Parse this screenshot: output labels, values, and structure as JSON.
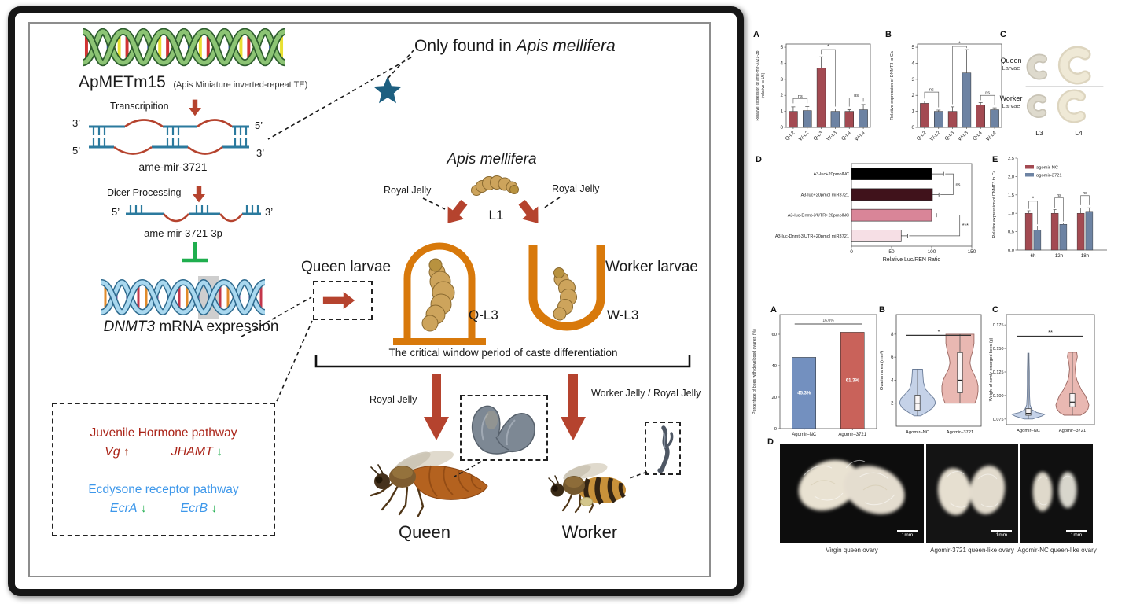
{
  "colors": {
    "queen_bar": "#a34a52",
    "worker_bar": "#6d83a3",
    "arrow_red": "#b5432e",
    "inhibit_green": "#1fae4e",
    "strand_teal": "#2b7a9e",
    "cell_orange": "#d8790b",
    "jh_red": "#aa2317",
    "ecdysone_blue": "#3d97ea",
    "star_blue": "#1d5f80",
    "fig2_blue": "#7390bf",
    "fig2_red": "#c9625a"
  },
  "main": {
    "te_name": "ApMETm15",
    "te_sub": "(Apis Miniature inverted-repeat TE)",
    "only_found_prefix": "Only found in ",
    "only_found_species": "Apis mellifera",
    "transcription_label": "Transcripition",
    "pre_mirna_name": "ame-mir-3721",
    "dicer_label": "Dicer Processing",
    "mature_mirna_name": "ame-mir-3721-3p",
    "mrna_gene": "DNMT3",
    "mrna_rest": " mRNA expression",
    "prime_top_left": "3’",
    "prime_top_right": "5’",
    "prime_bottom_left": "5’",
    "prime_bottom_right": "3’",
    "prime_mat_left": "5’",
    "prime_mat_right": "3’",
    "species_title": "Apis mellifera",
    "l1_label": "L1",
    "royal_jelly_left": "Royal Jelly",
    "royal_jelly_right": "Royal Jelly",
    "queen_larvae": "Queen larvae",
    "worker_larvae": "Worker larvae",
    "q_l3": "Q-L3",
    "w_l3": "W-L3",
    "critical_window": "The critical window period of caste differentiation",
    "royal_jelly_bottom": "Royal Jelly",
    "worker_jelly_bottom": "Worker Jelly / Royal Jelly",
    "queen_label": "Queen",
    "worker_label": "Worker",
    "pathway": {
      "jh_title": "Juvenile Hormone pathway",
      "vg": "Vg",
      "vg_dir": "↑",
      "jhamt": "JHAMT",
      "jhamt_dir": "↓",
      "ecd_title": "Ecdysone receptor pathway",
      "ecra": "EcrA",
      "ecra_dir": "↓",
      "ecrb": "EcrB",
      "ecrb_dir": "↓"
    }
  },
  "figure1": {
    "labels": {
      "a": "A",
      "b": "B",
      "c": "C",
      "d": "D",
      "e": "E"
    },
    "panelC": {
      "row1a": "Queen",
      "row1b": "Larvae",
      "row2a": "Worker",
      "row2b": "Larvae",
      "col1": "L3",
      "col2": "L4"
    }
  },
  "figure2": {
    "labels": {
      "a": "A",
      "b": "B",
      "c": "C",
      "d": "D"
    },
    "panelD": {
      "captions": [
        "Virgin queen ovary",
        "Agomir-3721 queen-like ovary",
        "Agomir-NC queen-like ovary"
      ],
      "scale": "1mm"
    }
  },
  "chart_data": {
    "fig1A": {
      "type": "bar",
      "ylabel": [
        "Relative expression of ame-mir-3721-3p",
        "(relative to U6)"
      ],
      "categories": [
        "Q-L2",
        "W-L2",
        "Q-L3",
        "W-L3",
        "Q-L4",
        "W-L4"
      ],
      "values": [
        1.0,
        1.05,
        3.7,
        1.0,
        1.0,
        1.1
      ],
      "errors": [
        0.28,
        0.25,
        0.7,
        0.15,
        0.1,
        0.33
      ],
      "colors": [
        "#a34a52",
        "#6d83a3",
        "#a34a52",
        "#6d83a3",
        "#a34a52",
        "#6d83a3"
      ],
      "ylim": [
        0,
        5.2
      ],
      "yticks": [
        0,
        1,
        2,
        3,
        4,
        5
      ],
      "sig": [
        {
          "a": 0,
          "b": 1,
          "y": 1.8,
          "ya": 1.5,
          "yb": 1.5,
          "t": "ns"
        },
        {
          "a": 2,
          "b": 3,
          "y": 4.85,
          "ya": 4.55,
          "yb": 1.3,
          "t": "*"
        },
        {
          "a": 4,
          "b": 5,
          "y": 1.85,
          "ya": 1.3,
          "yb": 1.6,
          "t": "ns"
        }
      ]
    },
    "fig1B": {
      "type": "bar",
      "ylabel": [
        "Relative expression of DNMT3 to Ca"
      ],
      "categories": [
        "Q-L2",
        "W-L2",
        "Q-L3",
        "W-L3",
        "Q-L4",
        "W-L4"
      ],
      "values": [
        1.5,
        1.0,
        1.0,
        3.4,
        1.4,
        1.1
      ],
      "errors": [
        0.15,
        0.08,
        0.28,
        1.45,
        0.15,
        0.12
      ],
      "colors": [
        "#a34a52",
        "#6d83a3",
        "#a34a52",
        "#6d83a3",
        "#a34a52",
        "#6d83a3"
      ],
      "ylim": [
        0,
        5.2
      ],
      "yticks": [
        0,
        1,
        2,
        3,
        4,
        5
      ],
      "sig": [
        {
          "a": 0,
          "b": 1,
          "y": 2.2,
          "ya": 1.8,
          "yb": 1.25,
          "t": "ns"
        },
        {
          "a": 2,
          "b": 3,
          "y": 5.05,
          "ya": 1.45,
          "yb": 4.95,
          "t": "*"
        },
        {
          "a": 4,
          "b": 5,
          "y": 2.0,
          "ya": 1.7,
          "yb": 1.4,
          "t": "ns"
        }
      ]
    },
    "fig1D": {
      "type": "hbar",
      "xlabel": "Relative Luc/REN Ratio",
      "categories": [
        "A3-luc+20pmolNC",
        "A3-luc+20pmol miR3721",
        "A3-luc-Dnmt-3'UTR+20pmolNC",
        "A3-luc-Dnmt-3'UTR+20pmol miR3721"
      ],
      "values": [
        100,
        101,
        100,
        62
      ],
      "errors": [
        15,
        8,
        6,
        8
      ],
      "colors": [
        "#000000",
        "#40121b",
        "#d98598",
        "#f6dfe5"
      ],
      "xlim": [
        0,
        150
      ],
      "xticks": [
        0,
        50,
        100,
        150
      ],
      "sig": [
        {
          "a": 0,
          "b": 1,
          "x": 127,
          "t": "ns"
        },
        {
          "a": 2,
          "b": 3,
          "x": 135,
          "t": "***"
        }
      ]
    },
    "fig1E": {
      "type": "groupbar",
      "ylabel": "Relative expression of DNMT3 to Ca",
      "categories": [
        "6h",
        "12h",
        "18h"
      ],
      "series": [
        {
          "name": "agomir-NC",
          "color": "#a34a52",
          "values": [
            1.0,
            1.0,
            1.0
          ],
          "errors": [
            0.07,
            0.1,
            0.14
          ]
        },
        {
          "name": "agomir-3721",
          "color": "#6d83a3",
          "values": [
            0.55,
            0.7,
            1.05
          ],
          "errors": [
            0.1,
            0.04,
            0.1
          ]
        }
      ],
      "ylim": [
        0,
        2.5
      ],
      "yticks": [
        {
          "v": 0,
          "l": "0,0"
        },
        {
          "v": 0.5,
          "l": "0,5"
        },
        {
          "v": 1.0,
          "l": "1,0"
        },
        {
          "v": 1.5,
          "l": "1,5"
        },
        {
          "v": 2.0,
          "l": "2,0"
        },
        {
          "v": 2.5,
          "l": "2,5"
        }
      ],
      "sig": [
        {
          "g": 0,
          "y": 1.33,
          "ya": 1.12,
          "yb": 0.7,
          "t": "*"
        },
        {
          "g": 1,
          "y": 1.42,
          "ya": 1.15,
          "yb": 0.78,
          "t": "ns"
        },
        {
          "g": 2,
          "y": 1.48,
          "ya": 1.22,
          "yb": 1.22,
          "t": "ns"
        }
      ]
    },
    "fig2A": {
      "type": "bar",
      "ylabel": [
        "Percentage of bees with  developed ovaries  (%)"
      ],
      "categories": [
        "Agomir–NC",
        "Agomir–3721"
      ],
      "values": [
        45.3,
        61.3
      ],
      "bar_labels": [
        "45.3%",
        "61.3%"
      ],
      "colors": [
        "#7390bf",
        "#c9625a"
      ],
      "ylim": [
        0,
        72.5
      ],
      "yticks": [
        0,
        20,
        40,
        60
      ],
      "diff_label": "16.0%",
      "diff_y": 66.5
    },
    "fig2B": {
      "type": "violin",
      "ylabel": "Ovarian area (mm²)",
      "categories": [
        "Agomir–NC",
        "Agomir–3721"
      ],
      "ylim": [
        0,
        9.7
      ],
      "yticks": [
        2,
        4,
        6,
        8
      ],
      "sig": {
        "t": "*",
        "y": 7.9
      },
      "violins": [
        {
          "fill": "#c5d2e8",
          "stroke": "#6b7d99",
          "median": 2.0,
          "q1": 1.4,
          "q3": 2.7,
          "lo": 0.9,
          "hi": 4.95,
          "profile": [
            [
              0.9,
              0.18
            ],
            [
              1.2,
              0.5
            ],
            [
              1.6,
              0.85
            ],
            [
              2.0,
              1.0
            ],
            [
              2.4,
              0.92
            ],
            [
              2.8,
              0.68
            ],
            [
              3.2,
              0.45
            ],
            [
              3.8,
              0.33
            ],
            [
              4.4,
              0.3
            ],
            [
              4.95,
              0.28
            ]
          ]
        },
        {
          "fill": "#e9b8b2",
          "stroke": "#9a6660",
          "median": 4.0,
          "q1": 2.9,
          "q3": 6.4,
          "lo": 2.0,
          "hi": 8.0,
          "profile": [
            [
              2.0,
              0.82
            ],
            [
              2.5,
              0.95
            ],
            [
              3.0,
              1.0
            ],
            [
              3.5,
              1.0
            ],
            [
              4.0,
              0.93
            ],
            [
              4.5,
              0.78
            ],
            [
              5.0,
              0.62
            ],
            [
              5.5,
              0.55
            ],
            [
              6.0,
              0.6
            ],
            [
              6.5,
              0.7
            ],
            [
              7.2,
              0.78
            ],
            [
              8.0,
              0.78
            ]
          ]
        }
      ]
    },
    "fig2C": {
      "type": "violin",
      "ylabel": "Weight of newly emerged bees (g)",
      "categories": [
        "Agomir–NC",
        "Agomir–3721"
      ],
      "ylim": [
        0.069,
        0.186
      ],
      "yticks": [
        {
          "v": 0.075,
          "l": "0.075"
        },
        {
          "v": 0.1,
          "l": "0.100"
        },
        {
          "v": 0.125,
          "l": "0.125"
        },
        {
          "v": 0.15,
          "l": "0.150"
        },
        {
          "v": 0.175,
          "l": "0.175"
        }
      ],
      "sig": {
        "t": "**",
        "y": 0.163
      },
      "violins": [
        {
          "fill": "#c5d2e8",
          "stroke": "#6b7d99",
          "median": 0.081,
          "q1": 0.079,
          "q3": 0.086,
          "lo": 0.075,
          "hi": 0.145,
          "profile": [
            [
              0.075,
              0.25
            ],
            [
              0.078,
              0.8
            ],
            [
              0.08,
              1.0
            ],
            [
              0.082,
              0.5
            ],
            [
              0.085,
              0.22
            ],
            [
              0.09,
              0.1
            ],
            [
              0.1,
              0.07
            ],
            [
              0.112,
              0.06
            ],
            [
              0.125,
              0.06
            ],
            [
              0.135,
              0.05
            ],
            [
              0.145,
              0.04
            ]
          ]
        },
        {
          "fill": "#e9b8b2",
          "stroke": "#9a6660",
          "median": 0.093,
          "q1": 0.088,
          "q3": 0.102,
          "lo": 0.079,
          "hi": 0.146,
          "profile": [
            [
              0.079,
              0.5
            ],
            [
              0.082,
              0.78
            ],
            [
              0.086,
              0.95
            ],
            [
              0.09,
              1.0
            ],
            [
              0.095,
              0.9
            ],
            [
              0.1,
              0.78
            ],
            [
              0.105,
              0.58
            ],
            [
              0.11,
              0.44
            ],
            [
              0.115,
              0.3
            ],
            [
              0.12,
              0.22
            ],
            [
              0.128,
              0.17
            ],
            [
              0.135,
              0.22
            ],
            [
              0.141,
              0.3
            ],
            [
              0.146,
              0.26
            ]
          ]
        }
      ]
    }
  }
}
